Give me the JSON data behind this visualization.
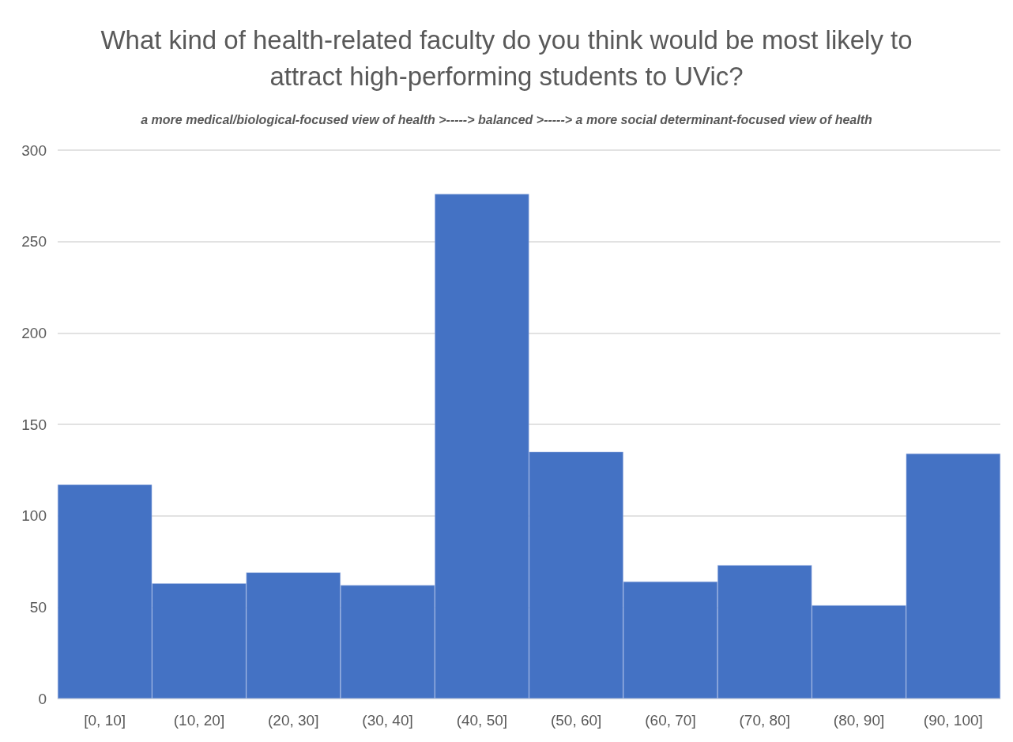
{
  "chart_data": {
    "type": "bar",
    "title": "What kind of health-related faculty do you think would be most likely to\nattract high-performing students to UVic?",
    "subtitle": "a more medical/biological-focused view of health >-----> balanced >-----> a more social determinant-focused view of health",
    "categories": [
      "[0, 10]",
      "(10, 20]",
      "(20, 30]",
      "(30, 40]",
      "(40, 50]",
      "(50, 60]",
      "(60, 70]",
      "(70, 80]",
      "(80, 90]",
      "(90, 100]"
    ],
    "values": [
      117,
      63,
      69,
      62,
      276,
      135,
      64,
      73,
      51,
      134
    ],
    "color": "#4472c4",
    "ylim": [
      0,
      300
    ],
    "yticks": [
      0,
      50,
      100,
      150,
      200,
      250,
      300
    ],
    "grid": "y"
  }
}
